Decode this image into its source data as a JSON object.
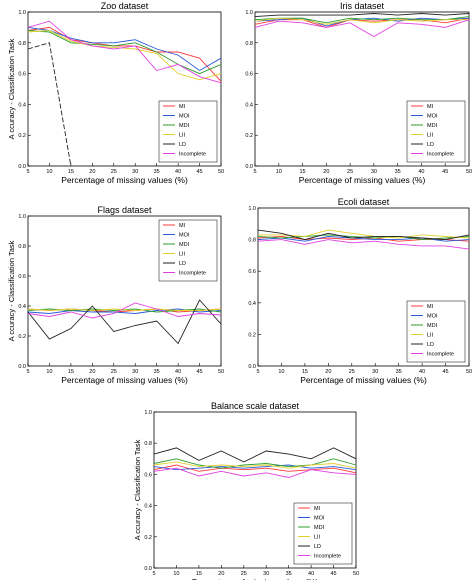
{
  "colors": {
    "MI": "#ff3b3b",
    "MOI": "#2a5bd7",
    "MDI": "#2e9e2e",
    "LII": "#e0d030",
    "LD": "#222222",
    "Incomplete": "#e040e0"
  },
  "chart_data": [
    {
      "type": "line",
      "title": "Zoo dataset",
      "xlabel": "Percentage of missing values (%)",
      "ylabel": "A ccuracy - Classification Task",
      "xlim": [
        5,
        50
      ],
      "ylim": [
        0,
        1.0
      ],
      "xticks": [
        "5",
        "10",
        "15",
        "20",
        "25",
        "30",
        "35",
        "40",
        "45",
        "50"
      ],
      "yticks": [
        "0.0",
        "0.2",
        "0.4",
        "0.6",
        "0.8",
        "1.0"
      ],
      "legend": "bottom-right",
      "x": [
        5,
        10,
        15,
        20,
        25,
        30,
        35,
        40,
        45,
        50
      ],
      "series": [
        {
          "name": "MI",
          "values": [
            0.88,
            0.9,
            0.82,
            0.8,
            0.78,
            0.78,
            0.74,
            0.74,
            0.7,
            0.55
          ]
        },
        {
          "name": "MOI",
          "values": [
            0.9,
            0.88,
            0.83,
            0.8,
            0.8,
            0.82,
            0.76,
            0.72,
            0.62,
            0.7
          ]
        },
        {
          "name": "MDI",
          "values": [
            0.88,
            0.87,
            0.8,
            0.79,
            0.78,
            0.8,
            0.74,
            0.66,
            0.6,
            0.66
          ]
        },
        {
          "name": "LII",
          "values": [
            0.87,
            0.88,
            0.81,
            0.78,
            0.77,
            0.76,
            0.73,
            0.6,
            0.56,
            0.6
          ]
        },
        {
          "name": "LD",
          "values": [
            0.76,
            0.8,
            0.0,
            null,
            null,
            null,
            null,
            null,
            null,
            null
          ],
          "dashed": true
        },
        {
          "name": "Incomplete",
          "values": [
            0.9,
            0.94,
            0.82,
            0.78,
            0.76,
            0.78,
            0.62,
            0.66,
            0.58,
            0.54
          ]
        }
      ]
    },
    {
      "type": "line",
      "title": "Iris dataset",
      "xlabel": "Percentage of missing values (%)",
      "ylabel": "",
      "xlim": [
        5,
        50
      ],
      "ylim": [
        0,
        1.0
      ],
      "xticks": [
        "5",
        "10",
        "15",
        "20",
        "25",
        "30",
        "35",
        "40",
        "45",
        "50"
      ],
      "yticks": [
        "0.0",
        "0.2",
        "0.4",
        "0.6",
        "0.8",
        "1.0"
      ],
      "legend": "bottom-right",
      "x": [
        5,
        10,
        15,
        20,
        25,
        30,
        35,
        40,
        45,
        50
      ],
      "series": [
        {
          "name": "MI",
          "values": [
            0.92,
            0.95,
            0.95,
            0.9,
            0.95,
            0.94,
            0.95,
            0.95,
            0.93,
            0.96
          ]
        },
        {
          "name": "MOI",
          "values": [
            0.94,
            0.95,
            0.96,
            0.91,
            0.95,
            0.96,
            0.94,
            0.96,
            0.95,
            0.96
          ]
        },
        {
          "name": "MDI",
          "values": [
            0.95,
            0.96,
            0.96,
            0.93,
            0.96,
            0.95,
            0.96,
            0.95,
            0.95,
            0.97
          ]
        },
        {
          "name": "LII",
          "values": [
            0.94,
            0.96,
            0.95,
            0.92,
            0.95,
            0.93,
            0.95,
            0.94,
            0.95,
            0.95
          ]
        },
        {
          "name": "LD",
          "values": [
            0.97,
            0.98,
            0.98,
            0.98,
            0.98,
            0.99,
            0.98,
            0.99,
            0.98,
            0.99
          ]
        },
        {
          "name": "Incomplete",
          "values": [
            0.9,
            0.94,
            0.93,
            0.9,
            0.93,
            0.84,
            0.93,
            0.92,
            0.9,
            0.95
          ]
        }
      ]
    },
    {
      "type": "line",
      "title": "Flags dataset",
      "xlabel": "Percentage of missing values (%)",
      "ylabel": "A ccuracy - Classification Task",
      "xlim": [
        5,
        50
      ],
      "ylim": [
        0,
        1.0
      ],
      "xticks": [
        "5",
        "10",
        "15",
        "20",
        "25",
        "30",
        "35",
        "40",
        "45",
        "50"
      ],
      "yticks": [
        "0.0",
        "0.2",
        "0.4",
        "0.6",
        "0.8",
        "1.0"
      ],
      "legend": "top-right",
      "x": [
        5,
        10,
        15,
        20,
        25,
        30,
        35,
        40,
        45,
        50
      ],
      "series": [
        {
          "name": "MI",
          "values": [
            0.38,
            0.37,
            0.38,
            0.37,
            0.36,
            0.37,
            0.38,
            0.36,
            0.37,
            0.38
          ]
        },
        {
          "name": "MOI",
          "values": [
            0.36,
            0.35,
            0.37,
            0.36,
            0.36,
            0.35,
            0.37,
            0.38,
            0.36,
            0.37
          ]
        },
        {
          "name": "MDI",
          "values": [
            0.37,
            0.38,
            0.37,
            0.38,
            0.37,
            0.38,
            0.36,
            0.37,
            0.38,
            0.36
          ]
        },
        {
          "name": "LII",
          "values": [
            0.38,
            0.37,
            0.38,
            0.37,
            0.38,
            0.37,
            0.38,
            0.37,
            0.37,
            0.38
          ]
        },
        {
          "name": "LD",
          "values": [
            0.36,
            0.18,
            0.25,
            0.4,
            0.23,
            0.27,
            0.3,
            0.15,
            0.44,
            0.28
          ]
        },
        {
          "name": "Incomplete",
          "values": [
            0.35,
            0.33,
            0.36,
            0.32,
            0.35,
            0.42,
            0.38,
            0.33,
            0.35,
            0.34
          ]
        }
      ]
    },
    {
      "type": "line",
      "title": "Ecoli dataset",
      "xlabel": "Percentage of missing values (%)",
      "ylabel": "",
      "xlim": [
        5,
        50
      ],
      "ylim": [
        0,
        1.0
      ],
      "xticks": [
        "5",
        "10",
        "15",
        "20",
        "25",
        "30",
        "35",
        "40",
        "45",
        "50"
      ],
      "yticks": [
        "0.0",
        "0.2",
        "0.4",
        "0.6",
        "0.8",
        "1.0"
      ],
      "legend": "bottom-right",
      "x": [
        5,
        10,
        15,
        20,
        25,
        30,
        35,
        40,
        45,
        50
      ],
      "series": [
        {
          "name": "MI",
          "values": [
            0.81,
            0.82,
            0.8,
            0.81,
            0.8,
            0.81,
            0.79,
            0.8,
            0.8,
            0.79
          ]
        },
        {
          "name": "MOI",
          "values": [
            0.8,
            0.81,
            0.79,
            0.82,
            0.81,
            0.8,
            0.8,
            0.81,
            0.79,
            0.8
          ]
        },
        {
          "name": "MDI",
          "values": [
            0.82,
            0.81,
            0.82,
            0.83,
            0.82,
            0.81,
            0.82,
            0.8,
            0.81,
            0.82
          ]
        },
        {
          "name": "LII",
          "values": [
            0.83,
            0.83,
            0.82,
            0.86,
            0.84,
            0.82,
            0.81,
            0.83,
            0.82,
            0.81
          ]
        },
        {
          "name": "LD",
          "values": [
            0.86,
            0.84,
            0.8,
            0.84,
            0.81,
            0.82,
            0.82,
            0.81,
            0.8,
            0.83
          ]
        },
        {
          "name": "Incomplete",
          "values": [
            0.79,
            0.8,
            0.77,
            0.8,
            0.78,
            0.79,
            0.77,
            0.76,
            0.76,
            0.74
          ]
        }
      ]
    },
    {
      "type": "line",
      "title": "Balance scale dataset",
      "xlabel": "Percentage of missing values (%)",
      "ylabel": "A ccuracy - Classification Task",
      "xlim": [
        5,
        50
      ],
      "ylim": [
        0,
        1.0
      ],
      "xticks": [
        "5",
        "10",
        "15",
        "20",
        "25",
        "30",
        "35",
        "40",
        "45",
        "50"
      ],
      "yticks": [
        "0.0",
        "0.2",
        "0.4",
        "0.6",
        "0.8",
        "1.0"
      ],
      "legend": "bottom-right",
      "x": [
        5,
        10,
        15,
        20,
        25,
        30,
        35,
        40,
        45,
        50
      ],
      "series": [
        {
          "name": "MI",
          "values": [
            0.63,
            0.66,
            0.62,
            0.64,
            0.63,
            0.64,
            0.62,
            0.63,
            0.64,
            0.61
          ]
        },
        {
          "name": "MOI",
          "values": [
            0.65,
            0.63,
            0.64,
            0.65,
            0.64,
            0.65,
            0.66,
            0.64,
            0.65,
            0.63
          ]
        },
        {
          "name": "MDI",
          "values": [
            0.67,
            0.7,
            0.66,
            0.64,
            0.66,
            0.67,
            0.65,
            0.66,
            0.7,
            0.66
          ]
        },
        {
          "name": "LII",
          "values": [
            0.66,
            0.68,
            0.65,
            0.66,
            0.65,
            0.66,
            0.64,
            0.66,
            0.67,
            0.64
          ]
        },
        {
          "name": "LD",
          "values": [
            0.73,
            0.77,
            0.69,
            0.75,
            0.68,
            0.75,
            0.73,
            0.7,
            0.77,
            0.7
          ]
        },
        {
          "name": "Incomplete",
          "values": [
            0.62,
            0.64,
            0.59,
            0.62,
            0.59,
            0.61,
            0.58,
            0.63,
            0.61,
            0.6
          ]
        }
      ]
    }
  ]
}
